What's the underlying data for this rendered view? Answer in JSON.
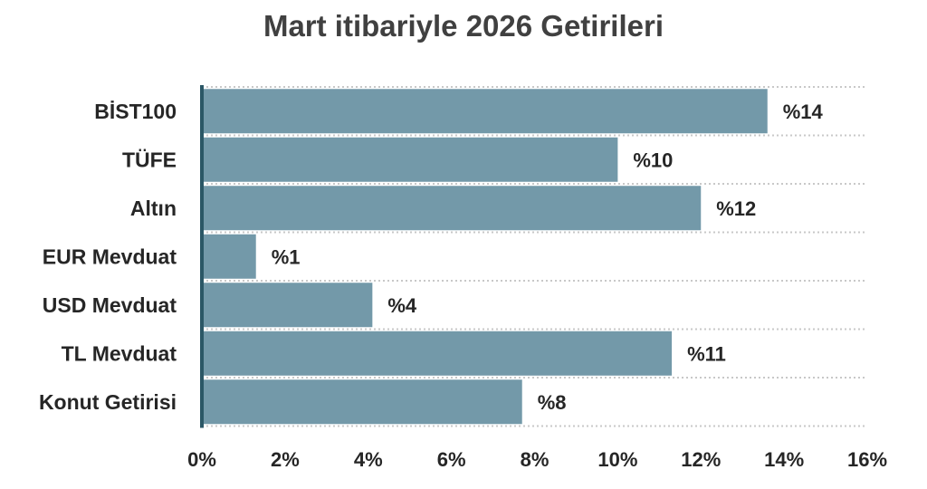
{
  "chart_data": {
    "type": "bar",
    "orientation": "horizontal",
    "title": "Mart itibariyle 2026 Getirileri",
    "categories": [
      "BİST100",
      "TÜFE",
      "Altın",
      "EUR Mevduat",
      "USD Mevduat",
      "TL Mevduat",
      "Konut Getirisi"
    ],
    "values": [
      13.6,
      10.0,
      12.0,
      1.3,
      4.1,
      11.3,
      7.7
    ],
    "value_labels": [
      "%14",
      "%10",
      "%12",
      "%1",
      "%4",
      "%11",
      "%8"
    ],
    "xlim": [
      0,
      16
    ],
    "x_ticks": [
      0,
      2,
      4,
      6,
      8,
      10,
      12,
      14,
      16
    ],
    "x_tick_labels": [
      "0%",
      "2%",
      "4%",
      "6%",
      "8%",
      "10%",
      "12%",
      "14%",
      "16%"
    ],
    "grid": "horizontal-dotted",
    "legend": "none",
    "colors": {
      "bar": "#7399A9",
      "axis": "#2B5766",
      "grid": "#C8C8C8",
      "text": "#262626",
      "title": "#404040"
    }
  }
}
